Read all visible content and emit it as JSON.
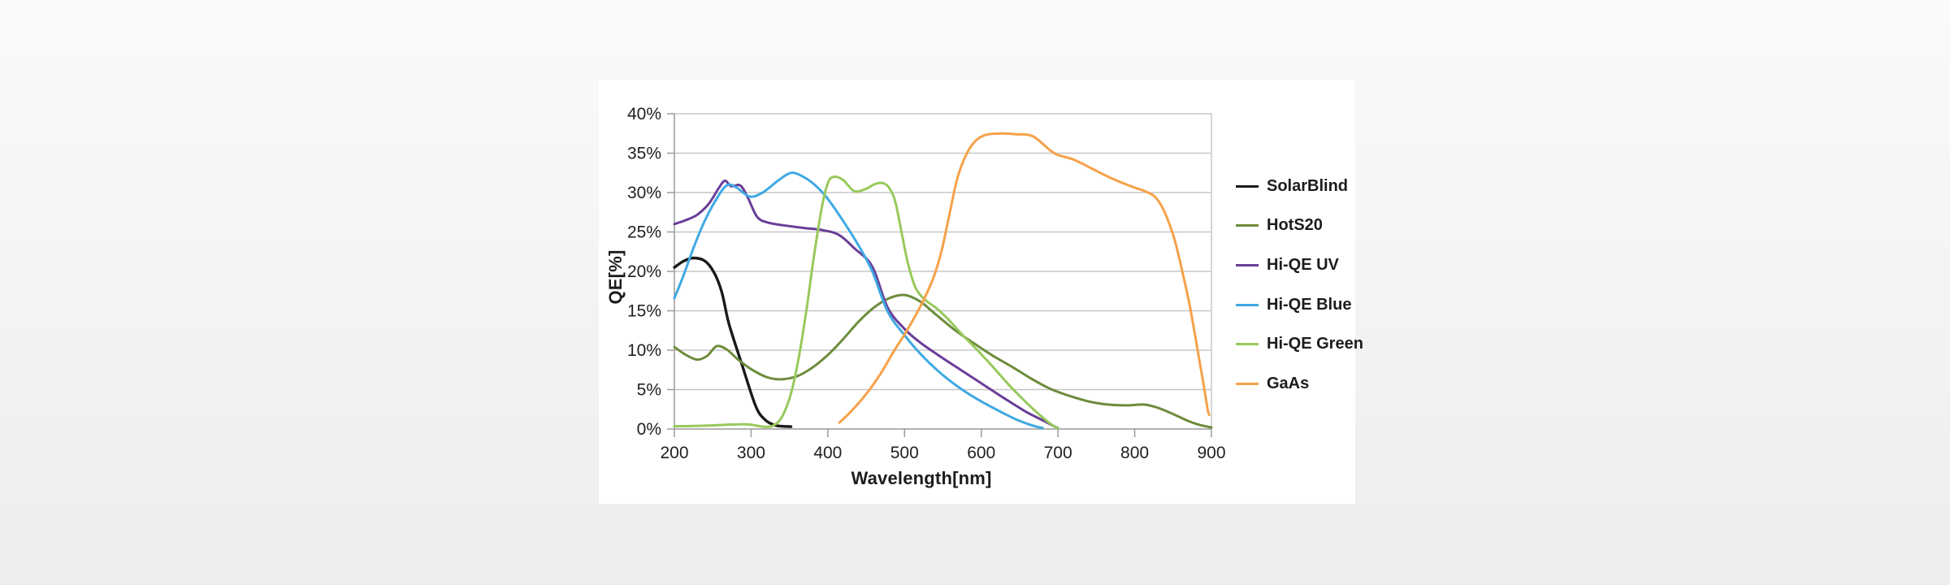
{
  "page": {
    "background_top": "#fafafa",
    "background_bottom": "#ededed",
    "panel_color": "#ffffff"
  },
  "colors": {
    "gridline": "#c7c7c7",
    "axis": "#9a9a9a",
    "tick_text": "#1f1f1f"
  },
  "chart_data": {
    "type": "line",
    "title": "",
    "xlabel": "Wavelength[nm]",
    "ylabel": "QE[%]",
    "xlim": [
      200,
      900
    ],
    "ylim_percent": [
      0,
      40
    ],
    "grid": "horizontal",
    "legend_position": "right",
    "x_ticks": [
      200,
      300,
      400,
      500,
      600,
      700,
      800,
      900
    ],
    "x_tick_labels": [
      "200",
      "300",
      "400",
      "500",
      "600",
      "700",
      "800",
      "900"
    ],
    "y_ticks_percent": [
      0,
      5,
      10,
      15,
      20,
      25,
      30,
      35,
      40
    ],
    "y_tick_labels": [
      "0%",
      "5%",
      "10%",
      "15%",
      "20%",
      "25%",
      "30%",
      "35%",
      "40%"
    ],
    "series": [
      {
        "name": "SolarBlind",
        "color": "#1a1a1a",
        "points": [
          [
            200,
            20.5
          ],
          [
            212,
            21.3
          ],
          [
            225,
            21.7
          ],
          [
            240,
            21.3
          ],
          [
            252,
            19.8
          ],
          [
            262,
            17.3
          ],
          [
            271,
            13.4
          ],
          [
            288,
            8.2
          ],
          [
            306,
            2.9
          ],
          [
            318,
            1.2
          ],
          [
            330,
            0.5
          ],
          [
            340,
            0.35
          ],
          [
            352,
            0.3
          ]
        ]
      },
      {
        "name": "HotS20",
        "color": "#6d8c3c",
        "points": [
          [
            200,
            10.4
          ],
          [
            215,
            9.4
          ],
          [
            230,
            8.8
          ],
          [
            243,
            9.3
          ],
          [
            255,
            10.5
          ],
          [
            268,
            10.1
          ],
          [
            282,
            8.9
          ],
          [
            300,
            7.6
          ],
          [
            320,
            6.6
          ],
          [
            338,
            6.3
          ],
          [
            360,
            6.7
          ],
          [
            380,
            7.8
          ],
          [
            400,
            9.4
          ],
          [
            420,
            11.4
          ],
          [
            440,
            13.6
          ],
          [
            460,
            15.4
          ],
          [
            480,
            16.6
          ],
          [
            500,
            17.0
          ],
          [
            520,
            16.2
          ],
          [
            540,
            14.6
          ],
          [
            565,
            12.6
          ],
          [
            590,
            10.9
          ],
          [
            615,
            9.3
          ],
          [
            640,
            7.9
          ],
          [
            665,
            6.4
          ],
          [
            690,
            5.1
          ],
          [
            715,
            4.2
          ],
          [
            740,
            3.5
          ],
          [
            765,
            3.1
          ],
          [
            790,
            3.0
          ],
          [
            812,
            3.1
          ],
          [
            830,
            2.7
          ],
          [
            850,
            1.9
          ],
          [
            870,
            1.0
          ],
          [
            885,
            0.5
          ],
          [
            900,
            0.2
          ]
        ]
      },
      {
        "name": "Hi-QE UV",
        "color": "#6a3e98",
        "points": [
          [
            200,
            26.0
          ],
          [
            215,
            26.5
          ],
          [
            230,
            27.2
          ],
          [
            245,
            28.6
          ],
          [
            258,
            30.6
          ],
          [
            266,
            31.5
          ],
          [
            274,
            30.8
          ],
          [
            286,
            30.9
          ],
          [
            296,
            29.3
          ],
          [
            308,
            26.9
          ],
          [
            322,
            26.2
          ],
          [
            345,
            25.8
          ],
          [
            370,
            25.5
          ],
          [
            395,
            25.2
          ],
          [
            415,
            24.6
          ],
          [
            435,
            22.9
          ],
          [
            458,
            20.6
          ],
          [
            478,
            15.4
          ],
          [
            500,
            12.7
          ],
          [
            520,
            11.0
          ],
          [
            545,
            9.3
          ],
          [
            570,
            7.7
          ],
          [
            600,
            5.8
          ],
          [
            630,
            3.9
          ],
          [
            658,
            2.2
          ],
          [
            680,
            1.1
          ],
          [
            694,
            0.4
          ],
          [
            700,
            0.12
          ]
        ]
      },
      {
        "name": "Hi-QE Blue",
        "color": "#3fa9e3",
        "points": [
          [
            200,
            16.6
          ],
          [
            212,
            19.5
          ],
          [
            225,
            23.0
          ],
          [
            240,
            26.5
          ],
          [
            255,
            29.2
          ],
          [
            268,
            30.9
          ],
          [
            280,
            30.7
          ],
          [
            298,
            29.5
          ],
          [
            315,
            30.0
          ],
          [
            335,
            31.5
          ],
          [
            352,
            32.5
          ],
          [
            368,
            32.0
          ],
          [
            385,
            30.8
          ],
          [
            400,
            29.2
          ],
          [
            420,
            26.4
          ],
          [
            440,
            23.3
          ],
          [
            458,
            20.0
          ],
          [
            478,
            14.9
          ],
          [
            500,
            11.9
          ],
          [
            522,
            9.4
          ],
          [
            548,
            7.0
          ],
          [
            575,
            5.0
          ],
          [
            600,
            3.5
          ],
          [
            625,
            2.2
          ],
          [
            648,
            1.1
          ],
          [
            668,
            0.4
          ],
          [
            680,
            0.12
          ]
        ]
      },
      {
        "name": "Hi-QE Green",
        "color": "#97c95c",
        "points": [
          [
            200,
            0.35
          ],
          [
            230,
            0.4
          ],
          [
            260,
            0.5
          ],
          [
            285,
            0.6
          ],
          [
            300,
            0.55
          ],
          [
            315,
            0.3
          ],
          [
            328,
            0.4
          ],
          [
            340,
            1.5
          ],
          [
            352,
            4.5
          ],
          [
            362,
            9.0
          ],
          [
            372,
            15.0
          ],
          [
            382,
            22.0
          ],
          [
            392,
            28.0
          ],
          [
            400,
            31.2
          ],
          [
            408,
            32.0
          ],
          [
            420,
            31.6
          ],
          [
            434,
            30.2
          ],
          [
            448,
            30.4
          ],
          [
            462,
            31.1
          ],
          [
            472,
            31.2
          ],
          [
            480,
            30.6
          ],
          [
            488,
            28.8
          ],
          [
            497,
            24.5
          ],
          [
            505,
            20.8
          ],
          [
            515,
            17.8
          ],
          [
            528,
            16.3
          ],
          [
            542,
            15.3
          ],
          [
            558,
            13.8
          ],
          [
            575,
            12.0
          ],
          [
            595,
            10.0
          ],
          [
            615,
            7.9
          ],
          [
            635,
            5.7
          ],
          [
            652,
            4.0
          ],
          [
            668,
            2.5
          ],
          [
            682,
            1.3
          ],
          [
            694,
            0.4
          ],
          [
            700,
            0.1
          ]
        ]
      },
      {
        "name": "GaAs",
        "color": "#f6a14a",
        "points": [
          [
            415,
            0.8
          ],
          [
            428,
            2.0
          ],
          [
            442,
            3.5
          ],
          [
            456,
            5.2
          ],
          [
            470,
            7.2
          ],
          [
            485,
            9.7
          ],
          [
            500,
            12.0
          ],
          [
            512,
            14.0
          ],
          [
            525,
            16.4
          ],
          [
            538,
            19.3
          ],
          [
            548,
            22.5
          ],
          [
            558,
            27.0
          ],
          [
            568,
            31.5
          ],
          [
            578,
            34.3
          ],
          [
            590,
            36.3
          ],
          [
            605,
            37.3
          ],
          [
            625,
            37.5
          ],
          [
            645,
            37.4
          ],
          [
            668,
            37.1
          ],
          [
            695,
            35.0
          ],
          [
            720,
            34.2
          ],
          [
            745,
            33.0
          ],
          [
            770,
            31.8
          ],
          [
            795,
            30.8
          ],
          [
            815,
            30.1
          ],
          [
            828,
            29.3
          ],
          [
            840,
            27.3
          ],
          [
            852,
            24.0
          ],
          [
            862,
            20.0
          ],
          [
            872,
            15.5
          ],
          [
            882,
            10.0
          ],
          [
            890,
            5.5
          ],
          [
            895,
            2.5
          ],
          [
            897,
            1.8
          ]
        ]
      }
    ]
  }
}
